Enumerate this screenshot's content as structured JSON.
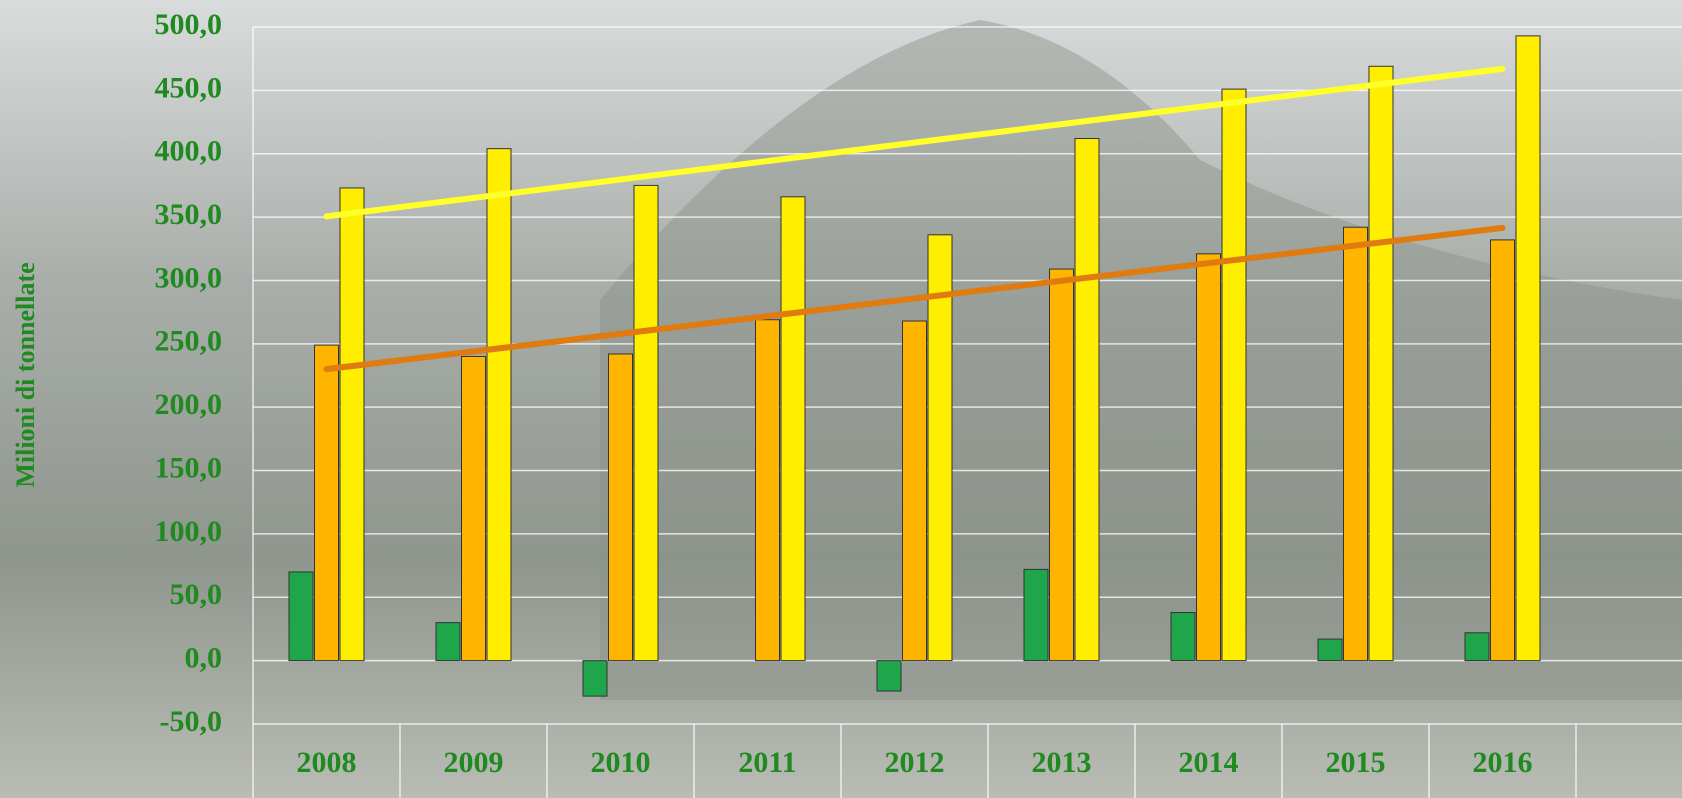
{
  "chart_data": {
    "type": "bar",
    "y_label": "Milioni di tonnellate",
    "categories": [
      "2008",
      "2009",
      "2010",
      "2011",
      "2012",
      "2013",
      "2014",
      "2015",
      "2016"
    ],
    "series": [
      {
        "color": "#1fa64a",
        "values": [
          70,
          30,
          -28,
          0,
          -24,
          72,
          38,
          17,
          22
        ]
      },
      {
        "color": "#ffb400",
        "values": [
          249,
          240,
          242,
          269,
          268,
          309,
          321,
          342,
          332
        ],
        "trendline": true,
        "trendline_color": "#e07b10"
      },
      {
        "color": "#ffee00",
        "values": [
          373,
          404,
          375,
          366,
          336,
          412,
          451,
          469,
          493
        ],
        "trendline": true,
        "trendline_color": "#ffff2a"
      }
    ],
    "ylim": [
      -50,
      500
    ],
    "yticks": [
      {
        "value": -50,
        "label": "-50,0"
      },
      {
        "value": 0,
        "label": "0,0"
      },
      {
        "value": 50,
        "label": "50,0"
      },
      {
        "value": 100,
        "label": "100,0"
      },
      {
        "value": 150,
        "label": "150,0"
      },
      {
        "value": 200,
        "label": "200,0"
      },
      {
        "value": 250,
        "label": "250,0"
      },
      {
        "value": 300,
        "label": "300,0"
      },
      {
        "value": 350,
        "label": "350,0"
      },
      {
        "value": 400,
        "label": "400,0"
      },
      {
        "value": 450,
        "label": "450,0"
      },
      {
        "value": 500,
        "label": "500,0"
      }
    ],
    "grid": true
  }
}
